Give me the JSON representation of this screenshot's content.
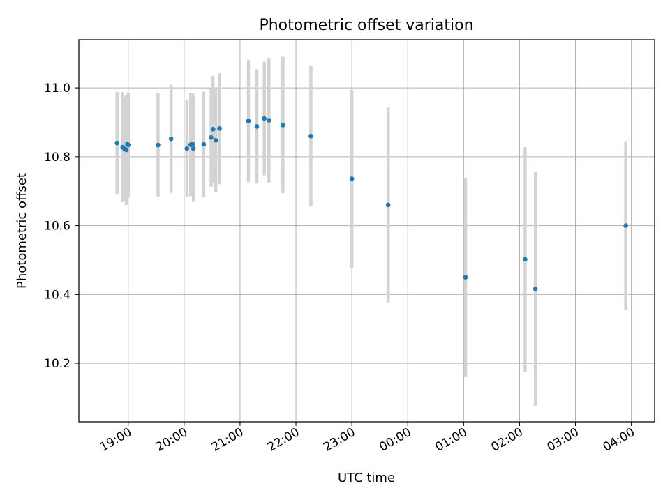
{
  "chart_data": {
    "type": "scatter",
    "title": "Photometric offset variation",
    "xlabel": "UTC time",
    "ylabel": "Photometric offset",
    "x_ticks": [
      "19:00",
      "20:00",
      "21:00",
      "22:00",
      "23:00",
      "00:00",
      "01:00",
      "02:00",
      "03:00",
      "04:00"
    ],
    "y_ticks": [
      "10.2",
      "10.4",
      "10.6",
      "10.8",
      "11.0"
    ],
    "y_tick_values": [
      10.2,
      10.4,
      10.6,
      10.8,
      11.0
    ],
    "xlim": [
      "18:07",
      "04:25"
    ],
    "ylim": [
      10.03,
      11.14
    ],
    "grid": true,
    "colors": {
      "points": "#1f77b4",
      "error_bars": "#d3d3d3",
      "grid": "#b0b0b0"
    },
    "points": [
      {
        "x": "18:48",
        "y": 10.84,
        "yerr": 0.148
      },
      {
        "x": "18:54",
        "y": 10.828,
        "yerr": 0.16
      },
      {
        "x": "18:56",
        "y": 10.823,
        "yerr": 0.15
      },
      {
        "x": "18:58",
        "y": 10.82,
        "yerr": 0.16
      },
      {
        "x": "18:59",
        "y": 10.837,
        "yerr": 0.14
      },
      {
        "x": "19:00",
        "y": 10.834,
        "yerr": 0.152
      },
      {
        "x": "19:32",
        "y": 10.834,
        "yerr": 0.15
      },
      {
        "x": "19:46",
        "y": 10.852,
        "yerr": 0.157
      },
      {
        "x": "20:03",
        "y": 10.824,
        "yerr": 0.14
      },
      {
        "x": "20:07",
        "y": 10.835,
        "yerr": 0.15
      },
      {
        "x": "20:09",
        "y": 10.837,
        "yerr": 0.148
      },
      {
        "x": "20:10",
        "y": 10.824,
        "yerr": 0.155
      },
      {
        "x": "20:21",
        "y": 10.836,
        "yerr": 0.153
      },
      {
        "x": "20:29",
        "y": 10.856,
        "yerr": 0.143
      },
      {
        "x": "20:31",
        "y": 10.88,
        "yerr": 0.155
      },
      {
        "x": "20:34",
        "y": 10.848,
        "yerr": 0.15
      },
      {
        "x": "20:38",
        "y": 10.882,
        "yerr": 0.162
      },
      {
        "x": "21:09",
        "y": 10.904,
        "yerr": 0.178
      },
      {
        "x": "21:18",
        "y": 10.888,
        "yerr": 0.166
      },
      {
        "x": "21:26",
        "y": 10.911,
        "yerr": 0.165
      },
      {
        "x": "21:31",
        "y": 10.906,
        "yerr": 0.181
      },
      {
        "x": "21:46",
        "y": 10.892,
        "yerr": 0.198
      },
      {
        "x": "22:16",
        "y": 10.86,
        "yerr": 0.204
      },
      {
        "x": "23:00",
        "y": 10.736,
        "yerr": 0.258
      },
      {
        "x": "23:39",
        "y": 10.66,
        "yerr": 0.283
      },
      {
        "x": "01:02",
        "y": 10.45,
        "yerr": 0.289
      },
      {
        "x": "02:06",
        "y": 10.502,
        "yerr": 0.326
      },
      {
        "x": "02:17",
        "y": 10.416,
        "yerr": 0.34
      },
      {
        "x": "03:54",
        "y": 10.6,
        "yerr": 0.245
      }
    ]
  }
}
